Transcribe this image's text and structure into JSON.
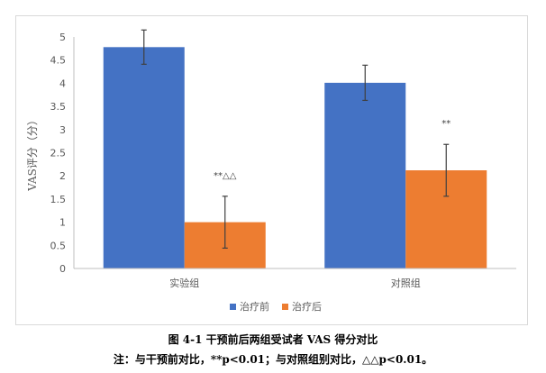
{
  "chart_data": {
    "type": "bar",
    "categories": [
      "实验组",
      "对照组"
    ],
    "series": [
      {
        "name": "治疗前",
        "color": "#4472c4",
        "values": [
          4.78,
          4.01
        ],
        "errors": [
          0.37,
          0.38
        ]
      },
      {
        "name": "治疗后",
        "color": "#ed7d31",
        "values": [
          1.0,
          2.12
        ],
        "errors": [
          0.56,
          0.56
        ]
      }
    ],
    "annotations": [
      {
        "category": 0,
        "series": 1,
        "text": "**△△"
      },
      {
        "category": 1,
        "series": 1,
        "text": "**"
      }
    ],
    "ylabel": "VAS评分（分）",
    "xlabel": "",
    "ylim": [
      0,
      5
    ],
    "yticks": [
      "0",
      "0.5",
      "1",
      "1.5",
      "2",
      "2.5",
      "3",
      "3.5",
      "4",
      "4.5",
      "5"
    ],
    "legend_position": "bottom"
  },
  "caption": {
    "title": "图 4-1  干预前后两组受试者 VAS 得分对比",
    "note": "注：与干预前对比，**p<0.01；与对照组别对比，△△p<0.01。"
  }
}
